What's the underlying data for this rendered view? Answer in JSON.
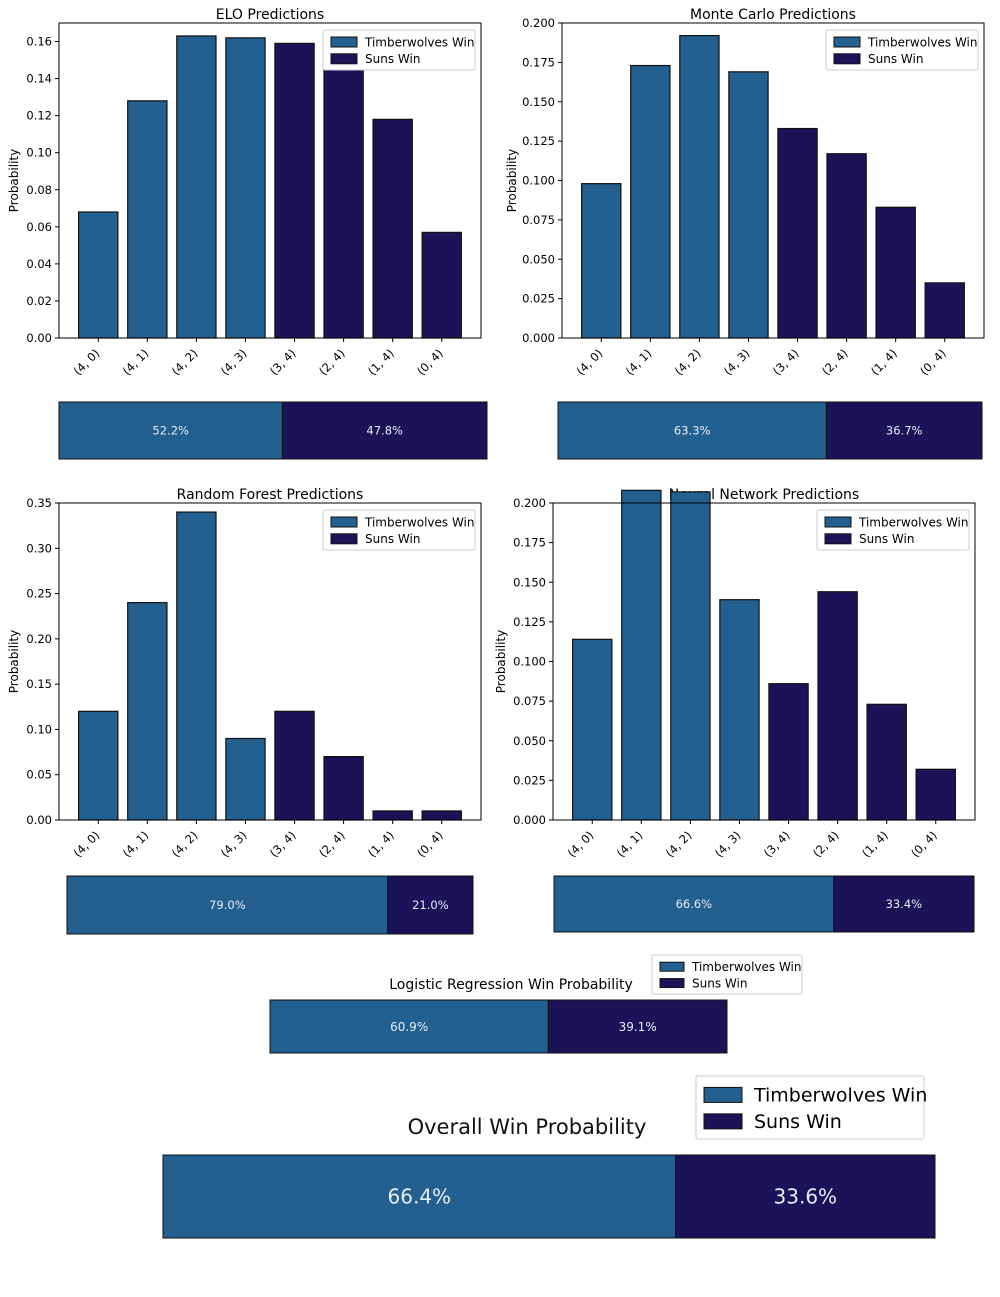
{
  "colors": {
    "team_a": "#23608f",
    "team_b": "#1c1258",
    "edge": "#111111",
    "axis": "#000000",
    "bg": "#ffffff",
    "bar_text": "#e6ecf5"
  },
  "legend": {
    "team_a": "Timberwolves Win",
    "team_b": "Suns Win"
  },
  "chart_data": [
    {
      "type": "bar",
      "title": "ELO Predictions",
      "xlabel": "",
      "ylabel": "Probability",
      "categories": [
        "(4, 0)",
        "(4, 1)",
        "(4, 2)",
        "(4, 3)",
        "(3, 4)",
        "(2, 4)",
        "(1, 4)",
        "(0, 4)"
      ],
      "series": [
        {
          "name": "Timberwolves Win",
          "values": [
            0.068,
            0.128,
            0.163,
            0.162,
            null,
            null,
            null,
            null
          ]
        },
        {
          "name": "Suns Win",
          "values": [
            null,
            null,
            null,
            null,
            0.159,
            0.145,
            0.118,
            0.057
          ]
        }
      ],
      "ylim": [
        0,
        0.17
      ],
      "yticks": [
        "0.00",
        "0.02",
        "0.04",
        "0.06",
        "0.08",
        "0.10",
        "0.12",
        "0.14",
        "0.16"
      ],
      "legend_position": "top-right",
      "summary": {
        "values": [
          52.2,
          47.8
        ],
        "labels": [
          "52.2%",
          "47.8%"
        ]
      }
    },
    {
      "type": "bar",
      "title": "Monte Carlo Predictions",
      "xlabel": "",
      "ylabel": "Probability",
      "categories": [
        "(4, 0)",
        "(4, 1)",
        "(4, 2)",
        "(4, 3)",
        "(3, 4)",
        "(2, 4)",
        "(1, 4)",
        "(0, 4)"
      ],
      "series": [
        {
          "name": "Timberwolves Win",
          "values": [
            0.098,
            0.173,
            0.192,
            0.169,
            null,
            null,
            null,
            null
          ]
        },
        {
          "name": "Suns Win",
          "values": [
            null,
            null,
            null,
            null,
            0.133,
            0.117,
            0.083,
            0.035
          ]
        }
      ],
      "ylim": [
        0,
        0.2
      ],
      "yticks": [
        "0.000",
        "0.025",
        "0.050",
        "0.075",
        "0.100",
        "0.125",
        "0.150",
        "0.175",
        "0.200"
      ],
      "legend_position": "top-right",
      "summary": {
        "values": [
          63.3,
          36.7
        ],
        "labels": [
          "63.3%",
          "36.7%"
        ]
      }
    },
    {
      "type": "bar",
      "title": "Random Forest Predictions",
      "xlabel": "",
      "ylabel": "Probability",
      "categories": [
        "(4, 0)",
        "(4, 1)",
        "(4, 2)",
        "(4, 3)",
        "(3, 4)",
        "(2, 4)",
        "(1, 4)",
        "(0, 4)"
      ],
      "series": [
        {
          "name": "Timberwolves Win",
          "values": [
            0.12,
            0.24,
            0.34,
            0.09,
            null,
            null,
            null,
            null
          ]
        },
        {
          "name": "Suns Win",
          "values": [
            null,
            null,
            null,
            null,
            0.12,
            0.07,
            0.01,
            0.01
          ]
        }
      ],
      "ylim": [
        0,
        0.35
      ],
      "yticks": [
        "0.00",
        "0.05",
        "0.10",
        "0.15",
        "0.20",
        "0.25",
        "0.30",
        "0.35"
      ],
      "legend_position": "top-right",
      "summary": {
        "values": [
          79.0,
          21.0
        ],
        "labels": [
          "79.0%",
          "21.0%"
        ]
      }
    },
    {
      "type": "bar",
      "title": "Neural Network Predictions",
      "xlabel": "",
      "ylabel": "Probability",
      "categories": [
        "(4, 0)",
        "(4, 1)",
        "(4, 2)",
        "(4, 3)",
        "(3, 4)",
        "(2, 4)",
        "(1, 4)",
        "(0, 4)"
      ],
      "series": [
        {
          "name": "Timberwolves Win",
          "values": [
            0.114,
            0.208,
            0.207,
            0.139,
            null,
            null,
            null,
            null
          ]
        },
        {
          "name": "Suns Win",
          "values": [
            null,
            null,
            null,
            null,
            0.086,
            0.144,
            0.073,
            0.032
          ]
        }
      ],
      "ylim": [
        0,
        0.2
      ],
      "yticks": [
        "0.000",
        "0.025",
        "0.050",
        "0.075",
        "0.100",
        "0.125",
        "0.150",
        "0.175",
        "0.200"
      ],
      "legend_position": "top-right",
      "summary": {
        "values": [
          66.6,
          33.4
        ],
        "labels": [
          "66.6%",
          "33.4%"
        ]
      }
    },
    {
      "type": "bar",
      "orientation": "stacked-horizontal",
      "title": "Logistic Regression Win Probability",
      "categories": [
        "Timberwolves Win",
        "Suns Win"
      ],
      "values": [
        60.9,
        39.1
      ],
      "labels": [
        "60.9%",
        "39.1%"
      ],
      "legend_position": "top-right"
    },
    {
      "type": "bar",
      "orientation": "stacked-horizontal",
      "title": "Overall Win Probability",
      "categories": [
        "Timberwolves Win",
        "Suns Win"
      ],
      "values": [
        66.4,
        33.6
      ],
      "labels": [
        "66.4%",
        "33.6%"
      ],
      "legend_position": "top-right"
    }
  ]
}
